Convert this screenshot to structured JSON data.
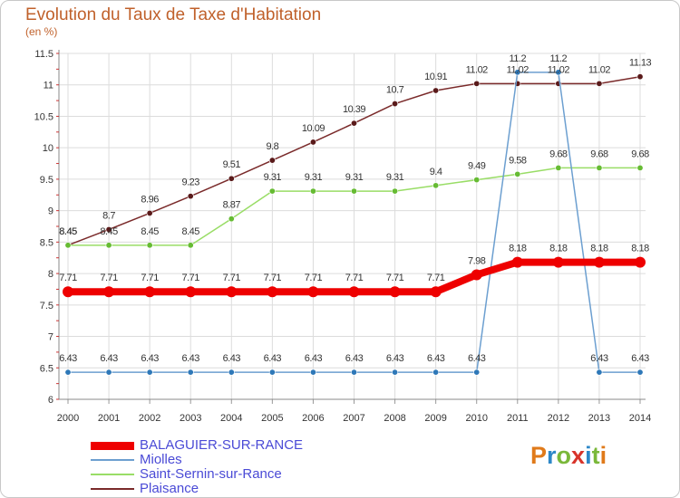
{
  "title": "Evolution du Taux de Taxe d'Habitation",
  "unit_label": "(en %)",
  "logo": {
    "text": "Proxiti",
    "letter_colors": [
      "#e07a1a",
      "#2e88c8",
      "#7ab83a",
      "#d8342a",
      "#2e88c8",
      "#7ab83a",
      "#e07a1a"
    ]
  },
  "chart_data": {
    "type": "line",
    "title": "Evolution du Taux de Taxe d'Habitation",
    "ylabel": "(en %)",
    "xlabel": "",
    "x": [
      "2000",
      "2001",
      "2002",
      "2003",
      "2004",
      "2005",
      "2006",
      "2007",
      "2008",
      "2009",
      "2010",
      "2011",
      "2012",
      "2013",
      "2014"
    ],
    "ylim": [
      6,
      11.5
    ],
    "yticks": [
      "6",
      "6.5",
      "7",
      "7.5",
      "8",
      "8.5",
      "9",
      "9.5",
      "10",
      "10.5",
      "11",
      "11.5"
    ],
    "grid": true,
    "legend_position": "bottom-left",
    "series": [
      {
        "name": "BALAGUIER-SUR-RANCE",
        "color": "#ee0000",
        "marker_color": "#ee0000",
        "values": [
          7.71,
          7.71,
          7.71,
          7.71,
          7.71,
          7.71,
          7.71,
          7.71,
          7.71,
          7.71,
          7.98,
          8.18,
          8.18,
          8.18,
          8.18
        ]
      },
      {
        "name": "Miolles",
        "color": "#6c9fd0",
        "marker_color": "#2e78b8",
        "values": [
          6.43,
          6.43,
          6.43,
          6.43,
          6.43,
          6.43,
          6.43,
          6.43,
          6.43,
          6.43,
          6.43,
          11.2,
          11.2,
          6.43,
          6.43
        ]
      },
      {
        "name": "Saint-Sernin-sur-Rance",
        "color": "#99dd66",
        "marker_color": "#66bb33",
        "values": [
          8.45,
          8.45,
          8.45,
          8.45,
          8.87,
          9.31,
          9.31,
          9.31,
          9.31,
          9.4,
          9.49,
          9.58,
          9.68,
          9.68,
          9.68
        ]
      },
      {
        "name": "Plaisance",
        "color": "#7a2a2a",
        "marker_color": "#5a1a1a",
        "values": [
          8.45,
          8.7,
          8.96,
          9.23,
          9.51,
          9.8,
          10.09,
          10.39,
          10.7,
          10.91,
          11.02,
          11.02,
          11.02,
          11.02,
          11.13
        ]
      }
    ]
  }
}
